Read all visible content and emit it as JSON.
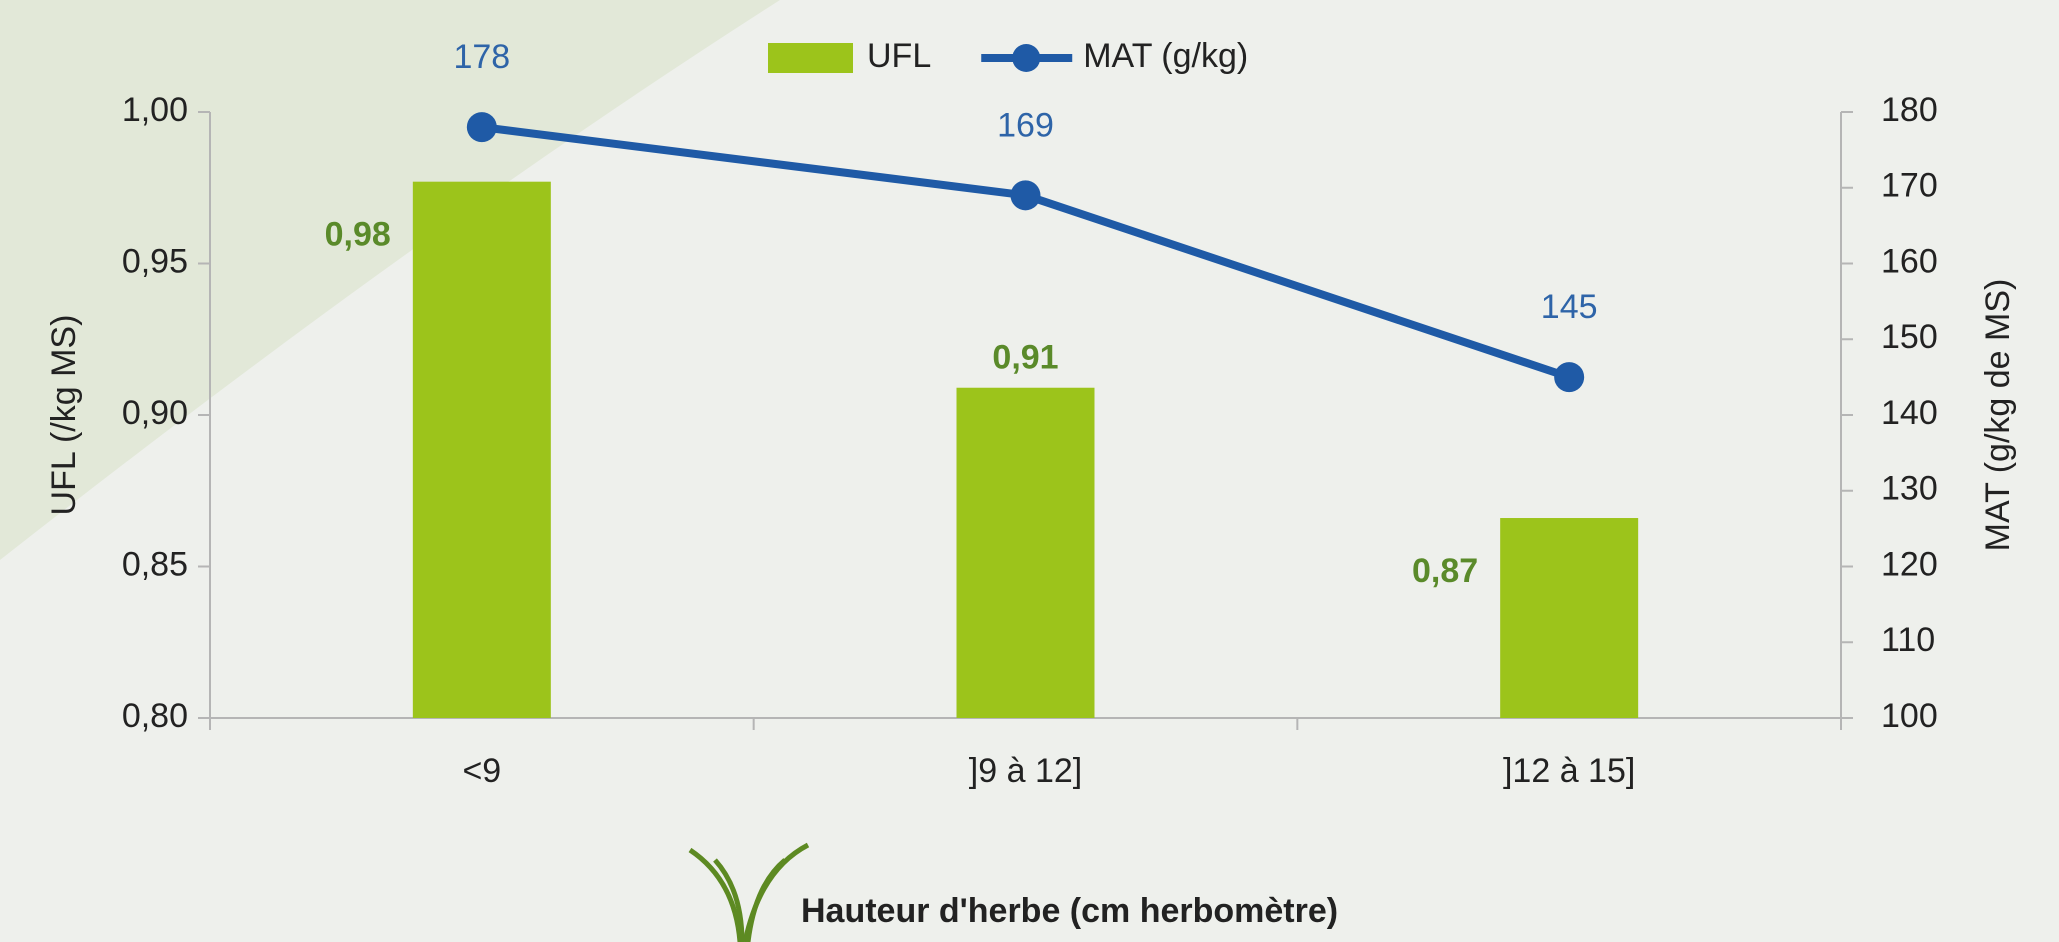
{
  "chart_data": {
    "type": "bar",
    "categories": [
      "<9",
      "]9 à 12]",
      "]12 à 15]"
    ],
    "series": [
      {
        "name": "UFL",
        "color": "#9cc41b",
        "values": [
          0.977,
          0.909,
          0.866
        ],
        "value_labels": [
          "0,98",
          "0,91",
          "0,87"
        ],
        "label_color": "#5a8a2a"
      },
      {
        "name": "MAT (g/kg)",
        "type": "line",
        "axis": "y2",
        "color": "#1f5aa6",
        "values": [
          178,
          169,
          145
        ],
        "label_color": "#2e64a8"
      }
    ],
    "ylim": [
      0.8,
      1.0
    ],
    "yticks": [
      {
        "value": 0.8,
        "label": "0,80"
      },
      {
        "value": 0.85,
        "label": "0,85"
      },
      {
        "value": 0.9,
        "label": "0,90"
      },
      {
        "value": 0.95,
        "label": "0,95"
      },
      {
        "value": 1.0,
        "label": "1,00"
      }
    ],
    "y2lim": [
      100,
      180
    ],
    "y2ticks": [
      100,
      110,
      120,
      130,
      140,
      150,
      160,
      170,
      180
    ],
    "y_label": "UFL (/kg MS)",
    "y2_label": "MAT (g/kg de MS)",
    "x_label": "Hauteur d'herbe (cm herbomètre)",
    "legend": "top"
  }
}
